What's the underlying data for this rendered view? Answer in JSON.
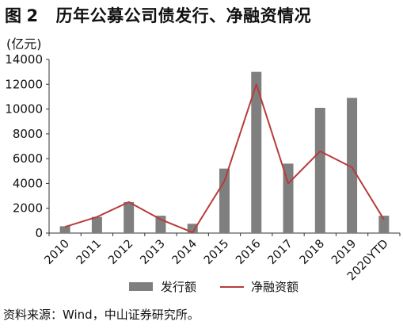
{
  "figure": {
    "label": "图",
    "number": "2",
    "title": "历年公募公司债发行、净融资情况"
  },
  "unit": "(亿元)",
  "source": "资料来源：Wind，中山证券研究所。",
  "colors": {
    "bar": "#7f7f7f",
    "line": "#b73c3c",
    "axis": "#333333"
  },
  "chart_data": {
    "type": "bar",
    "categories": [
      "2010",
      "2011",
      "2012",
      "2013",
      "2014",
      "2015",
      "2016",
      "2017",
      "2018",
      "2019",
      "2020YTD"
    ],
    "series": [
      {
        "name": "发行额",
        "type": "bar",
        "values": [
          550,
          1300,
          2500,
          1400,
          750,
          5200,
          13000,
          5600,
          10100,
          10900,
          1400
        ]
      },
      {
        "name": "净融资额",
        "type": "line",
        "values": [
          500,
          1300,
          2500,
          1100,
          50,
          4200,
          12000,
          4000,
          6600,
          5300,
          1100
        ]
      }
    ],
    "ylim": [
      0,
      14000
    ],
    "yticks": [
      "0",
      "2000",
      "4000",
      "6000",
      "8000",
      "10000",
      "12000",
      "14000"
    ],
    "grid": false,
    "legend": "bottom"
  }
}
